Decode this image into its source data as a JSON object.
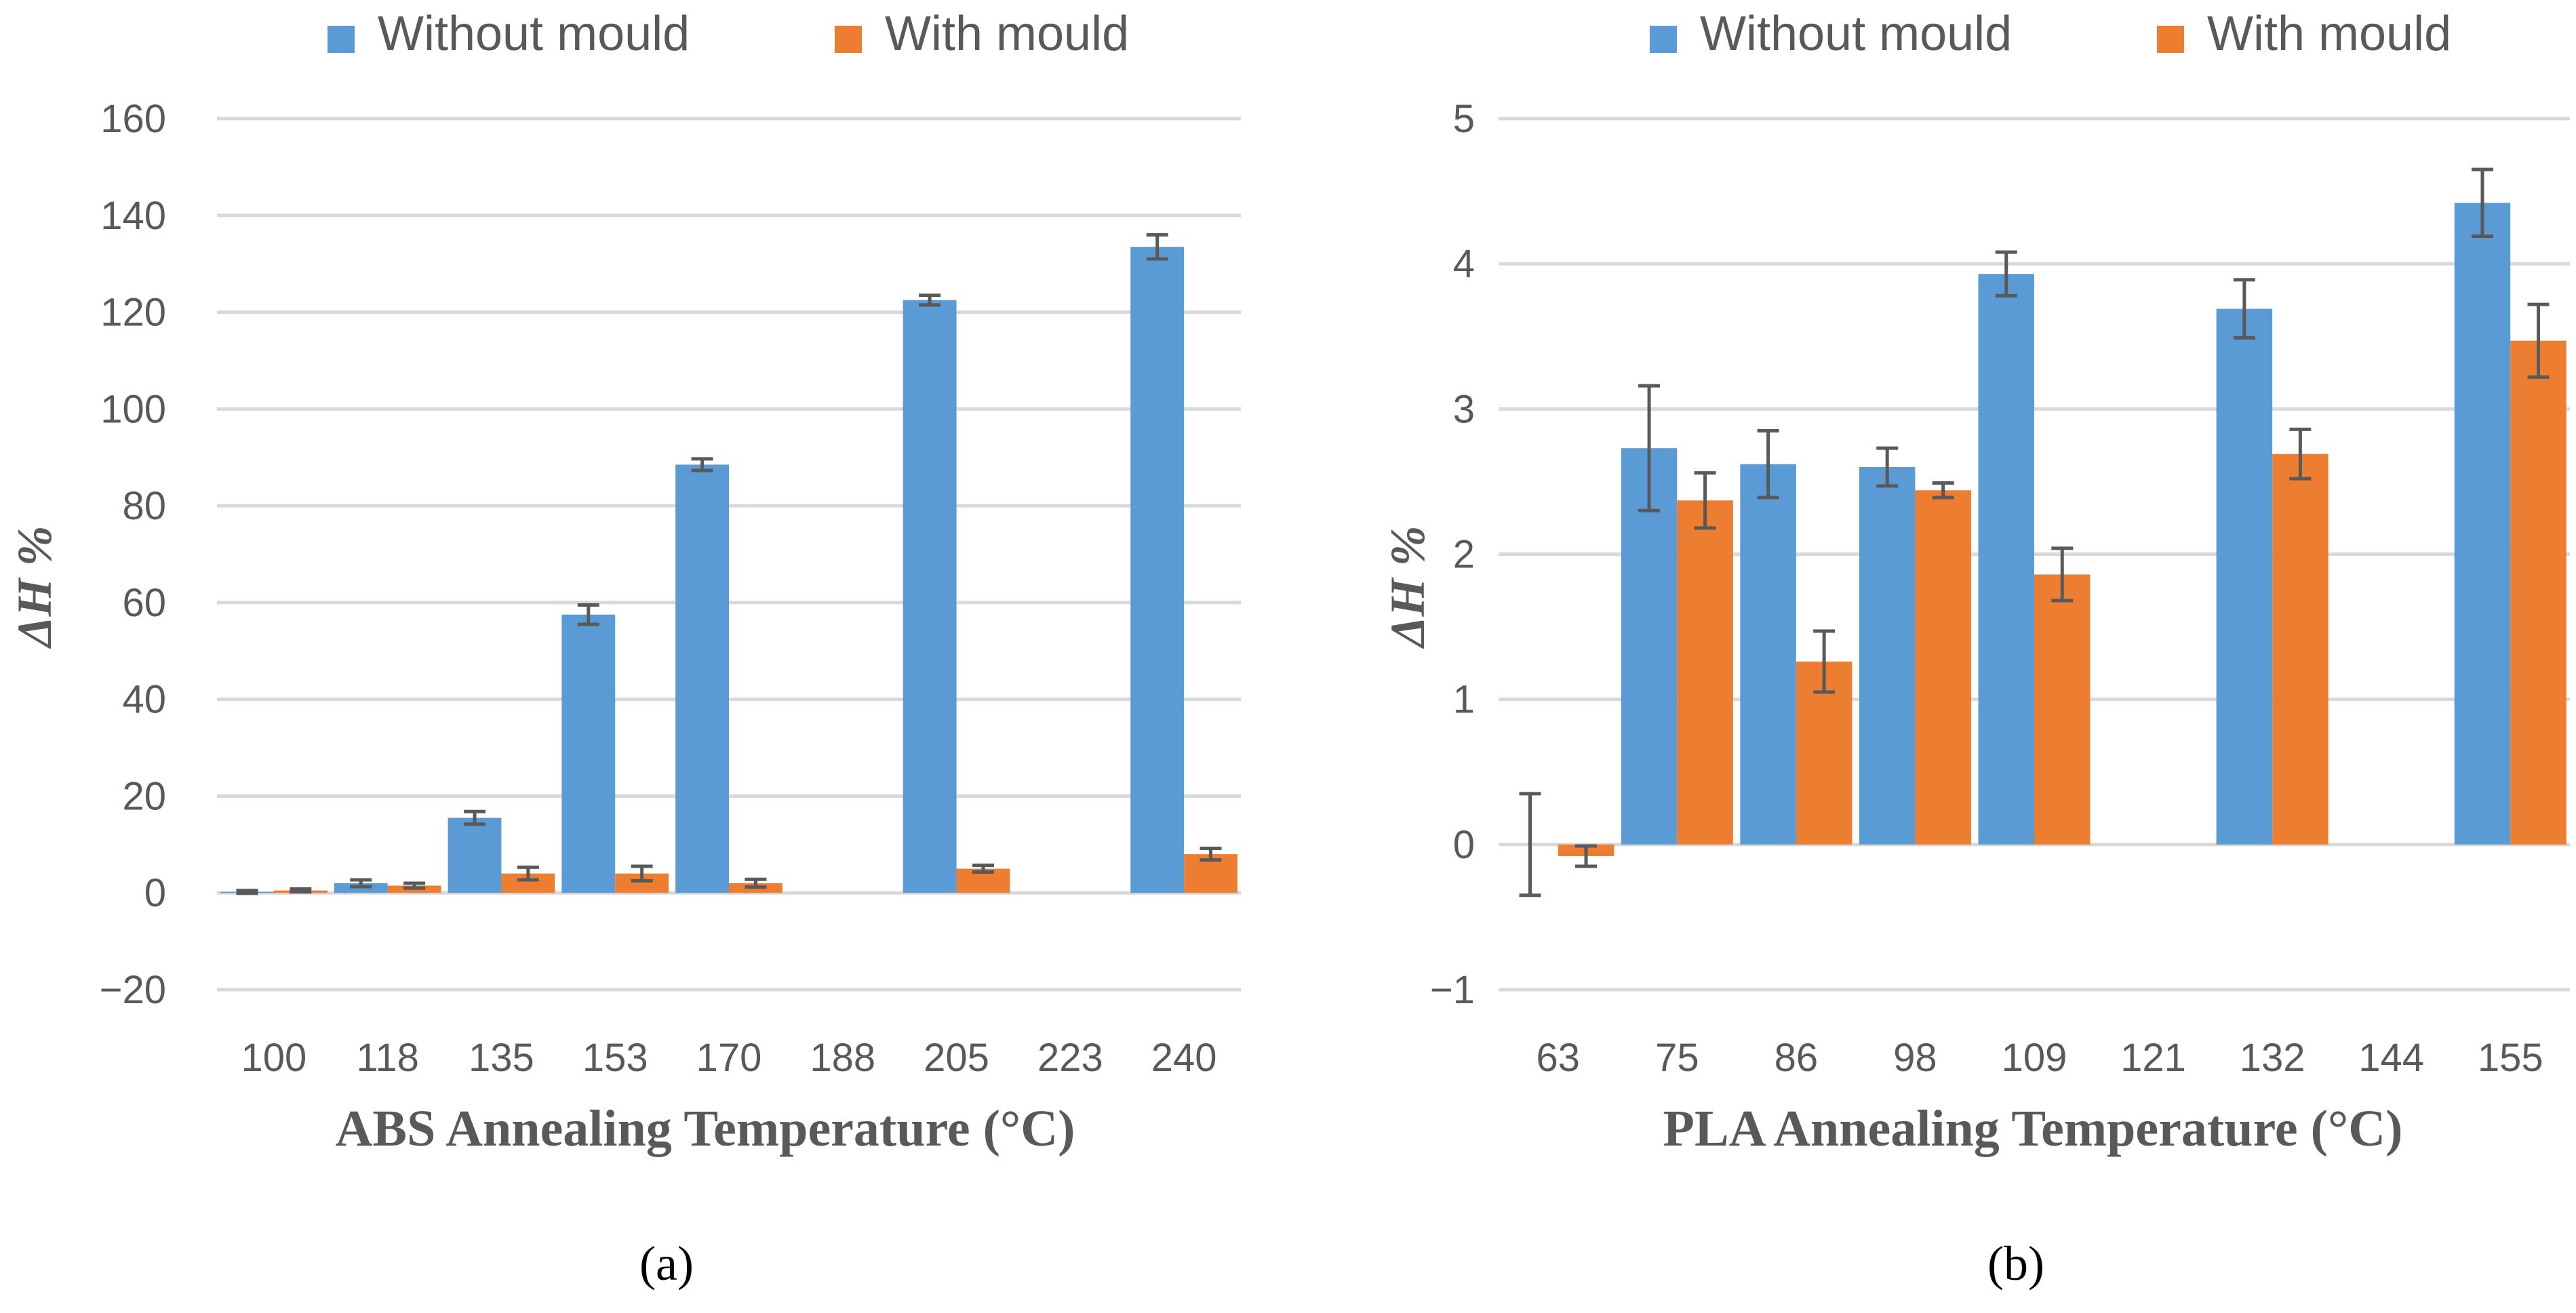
{
  "chart_data": [
    {
      "type": "bar",
      "title": "",
      "xlabel": "ABS Annealing Temperature (°C)",
      "ylabel": "ΔH %",
      "caption": "(a)",
      "categories": [
        "100",
        "118",
        "135",
        "153",
        "170",
        "188",
        "205",
        "223",
        "240"
      ],
      "ylim": [
        -20,
        160
      ],
      "yticks": [
        "−20",
        "0",
        "20",
        "40",
        "60",
        "80",
        "100",
        "120",
        "140",
        "160"
      ],
      "ytick_values": [
        -20,
        0,
        20,
        40,
        60,
        80,
        100,
        120,
        140,
        160
      ],
      "grid": true,
      "legend_position": "top-center",
      "series": [
        {
          "name": "Without mould",
          "color": "#5b9bd5",
          "values": [
            0.2,
            2.0,
            15.5,
            57.5,
            88.5,
            null,
            122.5,
            null,
            133.5
          ],
          "errors": [
            0.3,
            0.7,
            1.3,
            2.0,
            1.2,
            null,
            1.0,
            null,
            2.5
          ]
        },
        {
          "name": "With mould",
          "color": "#ed7d31",
          "values": [
            0.5,
            1.5,
            4.0,
            4.0,
            2.0,
            null,
            5.0,
            null,
            8.0
          ],
          "errors": [
            0.3,
            0.5,
            1.3,
            1.5,
            0.8,
            null,
            0.7,
            null,
            1.2
          ]
        }
      ]
    },
    {
      "type": "bar",
      "title": "",
      "xlabel": "PLA Annealing Temperature (°C)",
      "ylabel": "ΔH %",
      "caption": "(b)",
      "categories": [
        "63",
        "75",
        "86",
        "98",
        "109",
        "121",
        "132",
        "144",
        "155"
      ],
      "ylim": [
        -1,
        5
      ],
      "yticks": [
        "−1",
        "0",
        "1",
        "2",
        "3",
        "4",
        "5"
      ],
      "ytick_values": [
        -1,
        0,
        1,
        2,
        3,
        4,
        5
      ],
      "grid": true,
      "legend_position": "top-center",
      "series": [
        {
          "name": "Without mould",
          "color": "#5b9bd5",
          "values": [
            0.0,
            2.73,
            2.62,
            2.6,
            3.93,
            null,
            3.69,
            null,
            4.42
          ],
          "errors": [
            0.35,
            0.43,
            0.23,
            0.13,
            0.15,
            null,
            0.2,
            null,
            0.23
          ]
        },
        {
          "name": "With mould",
          "color": "#ed7d31",
          "values": [
            -0.08,
            2.37,
            1.26,
            2.44,
            1.86,
            null,
            2.69,
            null,
            3.47
          ],
          "errors": [
            0.07,
            0.19,
            0.21,
            0.05,
            0.18,
            null,
            0.17,
            null,
            0.25
          ]
        }
      ]
    }
  ]
}
